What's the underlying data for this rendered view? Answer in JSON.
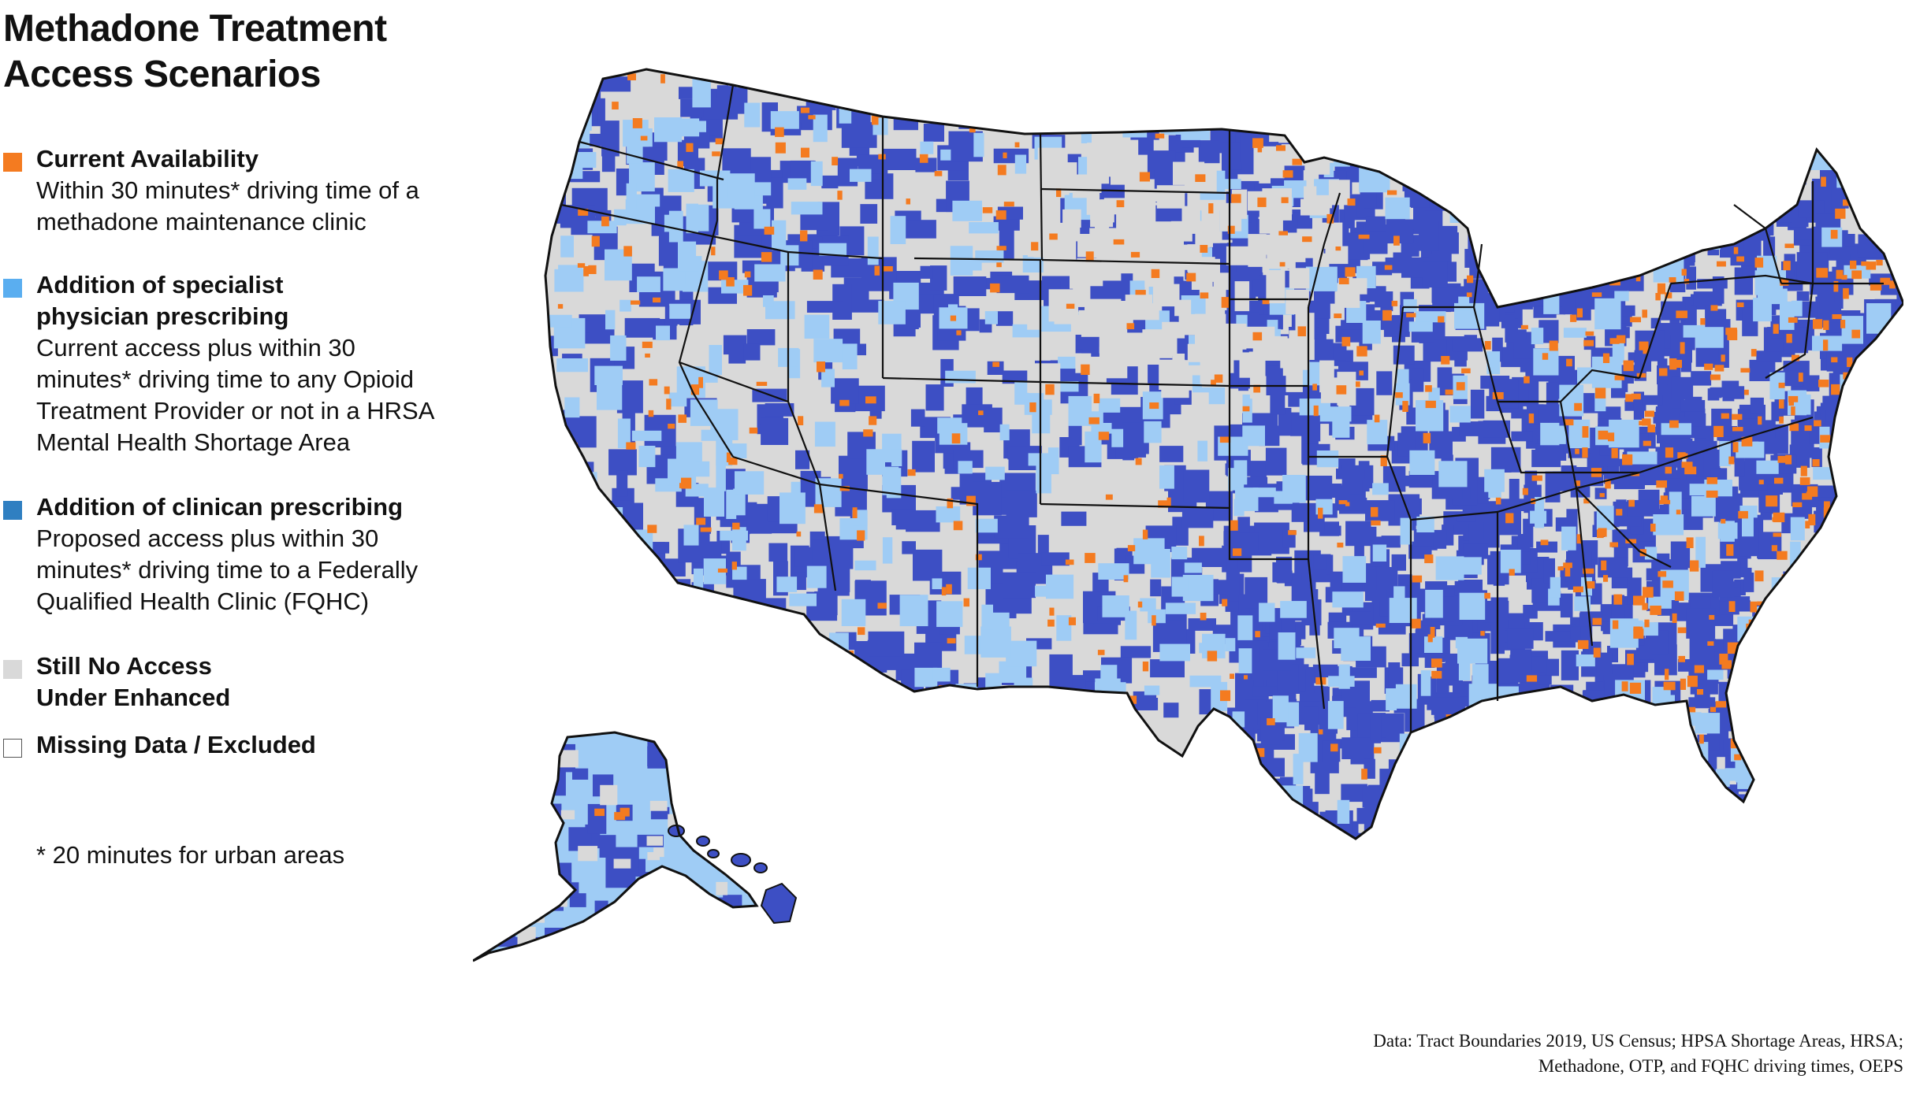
{
  "title": {
    "line1": "Methadone Treatment",
    "line2": "Access Scenarios"
  },
  "legend": [
    {
      "color": "#f47b20",
      "title": [
        "Current Availability"
      ],
      "desc": [
        "Within 30 minutes* driving time of a",
        "methadone maintenance clinic"
      ]
    },
    {
      "color": "#5aaef0",
      "title": [
        "Addition of specialist",
        "physician prescribing"
      ],
      "desc": [
        "Current access plus within 30",
        "minutes* driving time to any Opioid",
        "Treatment Provider or not in a HRSA",
        "Mental Health Shortage Area"
      ]
    },
    {
      "color": "#2f7fc1",
      "title": [
        "Addition of clinican prescribing"
      ],
      "desc": [
        "Proposed access plus within 30",
        "minutes* driving time to a Federally",
        "Qualified Health Clinic (FQHC)"
      ]
    },
    {
      "color": "#d9d9d9",
      "title": [
        "Still No Access",
        "Under Enhanced"
      ],
      "desc": []
    },
    {
      "color": "#ffffff",
      "title": [
        "Missing Data / Excluded"
      ],
      "desc": []
    }
  ],
  "footnote": "* 20 minutes for urban areas",
  "source": {
    "line1": "Data: Tract Boundaries 2019, US Census; HPSA Shortage Areas, HRSA;",
    "line2": "Methadone, OTP, and FQHC driving times, OEPS"
  },
  "map_colors": {
    "current": "#f47b20",
    "specialist": "#9fccf5",
    "clinician": "#3d4fc4",
    "no_access": "#d9d9d9",
    "missing": "#ffffff",
    "border": "#111111"
  }
}
